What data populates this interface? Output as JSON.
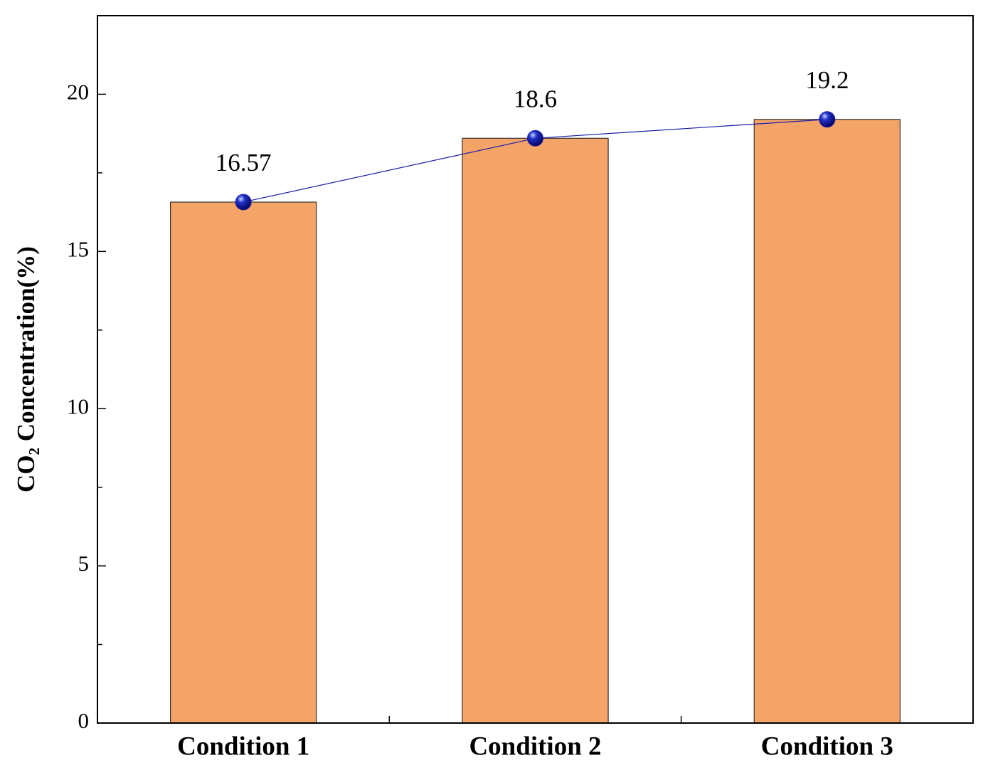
{
  "chart_data": {
    "type": "bar",
    "y_label": "CO₂ Concentration(%)",
    "categories": [
      "Condition 1",
      "Condition 2",
      "Condition 3"
    ],
    "values": [
      16.57,
      18.6,
      19.2
    ],
    "color": "#f4a466",
    "line_overlay": true,
    "line_color": "#1c1ca8",
    "ylim": [
      0,
      22.5
    ],
    "yticks": [
      0,
      5,
      10,
      15,
      20
    ]
  }
}
